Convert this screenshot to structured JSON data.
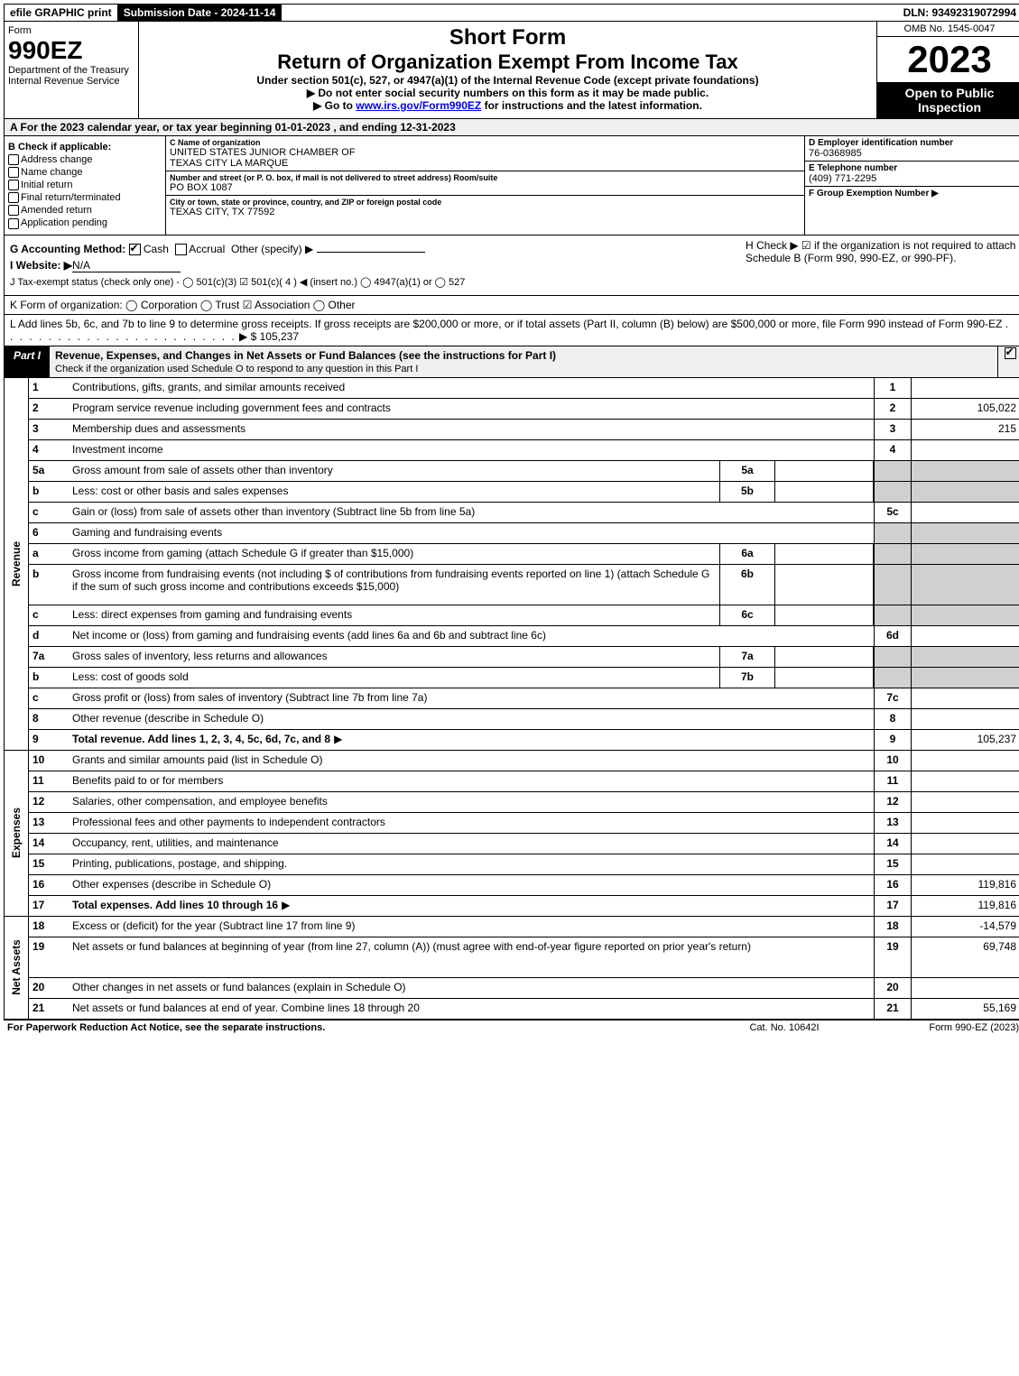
{
  "colors": {
    "black": "#000000",
    "grey_bg": "#f0f0f0",
    "cell_grey": "#d0d0d0",
    "link": "#0000ee"
  },
  "topbar": {
    "efile": "efile GRAPHIC print",
    "submission": "Submission Date - 2024-11-14",
    "dln": "DLN: 93492319072994"
  },
  "header": {
    "form": "Form",
    "form_no": "990EZ",
    "dept1": "Department of the Treasury",
    "dept2": "Internal Revenue Service",
    "title1": "Short Form",
    "title2": "Return of Organization Exempt From Income Tax",
    "sub1": "Under section 501(c), 527, or 4947(a)(1) of the Internal Revenue Code (except private foundations)",
    "sub2": "▶ Do not enter social security numbers on this form as it may be made public.",
    "sub3_pre": "▶ Go to ",
    "sub3_link": "www.irs.gov/Form990EZ",
    "sub3_post": " for instructions and the latest information.",
    "omb": "OMB No. 1545-0047",
    "year": "2023",
    "open": "Open to Public Inspection"
  },
  "rowA": "A  For the 2023 calendar year, or tax year beginning 01-01-2023 , and ending 12-31-2023",
  "colB": {
    "title": "B  Check if applicable:",
    "items": [
      "Address change",
      "Name change",
      "Initial return",
      "Final return/terminated",
      "Amended return",
      "Application pending"
    ]
  },
  "colC": {
    "name_lbl": "C Name of organization",
    "name1": "UNITED STATES JUNIOR CHAMBER OF",
    "name2": "TEXAS CITY LA MARQUE",
    "addr_lbl": "Number and street (or P. O. box, if mail is not delivered to street address)     Room/suite",
    "addr": "PO BOX 1087",
    "city_lbl": "City or town, state or province, country, and ZIP or foreign postal code",
    "city": "TEXAS CITY, TX  77592"
  },
  "colDEF": {
    "d_lbl": "D Employer identification number",
    "d_val": "76-0368985",
    "e_lbl": "E Telephone number",
    "e_val": "(409) 771-2295",
    "f_lbl": "F Group Exemption Number   ▶"
  },
  "secG": {
    "g_pre": "G Accounting Method:",
    "g_cash": "Cash",
    "g_accrual": "Accrual",
    "g_other": "Other (specify) ▶",
    "i_pre": "I Website: ▶",
    "i_val": "N/A",
    "j": "J Tax-exempt status (check only one) -  ◯ 501(c)(3)  ☑ 501(c)( 4 ) ◀ (insert no.)  ◯ 4947(a)(1) or  ◯ 527",
    "h": "H  Check ▶ ☑ if the organization is not required to attach Schedule B (Form 990, 990-EZ, or 990-PF)."
  },
  "k": "K Form of organization:   ◯ Corporation   ◯ Trust   ☑ Association   ◯ Other",
  "l_pre": "L Add lines 5b, 6c, and 7b to line 9 to determine gross receipts. If gross receipts are $200,000 or more, or if total assets (Part II, column (B) below) are $500,000 or more, file Form 990 instead of Form 990-EZ",
  "l_val": "▶ $ 105,237",
  "part1": {
    "tag": "Part I",
    "title": "Revenue, Expenses, and Changes in Net Assets or Fund Balances (see the instructions for Part I)",
    "sub": "Check if the organization used Schedule O to respond to any question in this Part I"
  },
  "vlabels": {
    "rev": "Revenue",
    "exp": "Expenses",
    "na": "Net Assets"
  },
  "lines_rev": [
    {
      "n": "1",
      "d": "Contributions, gifts, grants, and similar amounts received",
      "r": "1",
      "v": ""
    },
    {
      "n": "2",
      "d": "Program service revenue including government fees and contracts",
      "r": "2",
      "v": "105,022"
    },
    {
      "n": "3",
      "d": "Membership dues and assessments",
      "r": "3",
      "v": "215"
    },
    {
      "n": "4",
      "d": "Investment income",
      "r": "4",
      "v": ""
    },
    {
      "n": "5a",
      "d": "Gross amount from sale of assets other than inventory",
      "sub": "5a",
      "subv": "",
      "grey": true
    },
    {
      "n": "b",
      "d": "Less: cost or other basis and sales expenses",
      "sub": "5b",
      "subv": "",
      "grey": true
    },
    {
      "n": "c",
      "d": "Gain or (loss) from sale of assets other than inventory (Subtract line 5b from line 5a)",
      "r": "5c",
      "v": ""
    },
    {
      "n": "6",
      "d": "Gaming and fundraising events",
      "greyr": true
    },
    {
      "n": "a",
      "d": "Gross income from gaming (attach Schedule G if greater than $15,000)",
      "sub": "6a",
      "subv": "",
      "grey": true
    },
    {
      "n": "b",
      "d": "Gross income from fundraising events (not including $                     of contributions from fundraising events reported on line 1) (attach Schedule G if the sum of such gross income and contributions exceeds $15,000)",
      "sub": "6b",
      "subv": "",
      "grey": true,
      "tall": true
    },
    {
      "n": "c",
      "d": "Less: direct expenses from gaming and fundraising events",
      "sub": "6c",
      "subv": "",
      "grey": true
    },
    {
      "n": "d",
      "d": "Net income or (loss) from gaming and fundraising events (add lines 6a and 6b and subtract line 6c)",
      "r": "6d",
      "v": ""
    },
    {
      "n": "7a",
      "d": "Gross sales of inventory, less returns and allowances",
      "sub": "7a",
      "subv": "",
      "grey": true
    },
    {
      "n": "b",
      "d": "Less: cost of goods sold",
      "sub": "7b",
      "subv": "",
      "grey": true
    },
    {
      "n": "c",
      "d": "Gross profit or (loss) from sales of inventory (Subtract line 7b from line 7a)",
      "r": "7c",
      "v": ""
    },
    {
      "n": "8",
      "d": "Other revenue (describe in Schedule O)",
      "r": "8",
      "v": ""
    },
    {
      "n": "9",
      "d": "Total revenue. Add lines 1, 2, 3, 4, 5c, 6d, 7c, and 8",
      "r": "9",
      "v": "105,237",
      "bold": true,
      "arrow": true
    }
  ],
  "lines_exp": [
    {
      "n": "10",
      "d": "Grants and similar amounts paid (list in Schedule O)",
      "r": "10",
      "v": ""
    },
    {
      "n": "11",
      "d": "Benefits paid to or for members",
      "r": "11",
      "v": ""
    },
    {
      "n": "12",
      "d": "Salaries, other compensation, and employee benefits",
      "r": "12",
      "v": ""
    },
    {
      "n": "13",
      "d": "Professional fees and other payments to independent contractors",
      "r": "13",
      "v": ""
    },
    {
      "n": "14",
      "d": "Occupancy, rent, utilities, and maintenance",
      "r": "14",
      "v": ""
    },
    {
      "n": "15",
      "d": "Printing, publications, postage, and shipping.",
      "r": "15",
      "v": ""
    },
    {
      "n": "16",
      "d": "Other expenses (describe in Schedule O)",
      "r": "16",
      "v": "119,816"
    },
    {
      "n": "17",
      "d": "Total expenses. Add lines 10 through 16",
      "r": "17",
      "v": "119,816",
      "bold": true,
      "arrow": true
    }
  ],
  "lines_na": [
    {
      "n": "18",
      "d": "Excess or (deficit) for the year (Subtract line 17 from line 9)",
      "r": "18",
      "v": "-14,579"
    },
    {
      "n": "19",
      "d": "Net assets or fund balances at beginning of year (from line 27, column (A)) (must agree with end-of-year figure reported on prior year's return)",
      "r": "19",
      "v": "69,748",
      "tall": true
    },
    {
      "n": "20",
      "d": "Other changes in net assets or fund balances (explain in Schedule O)",
      "r": "20",
      "v": ""
    },
    {
      "n": "21",
      "d": "Net assets or fund balances at end of year. Combine lines 18 through 20",
      "r": "21",
      "v": "55,169"
    }
  ],
  "footer": {
    "a": "For Paperwork Reduction Act Notice, see the separate instructions.",
    "b": "Cat. No. 10642I",
    "c": "Form 990-EZ (2023)"
  }
}
